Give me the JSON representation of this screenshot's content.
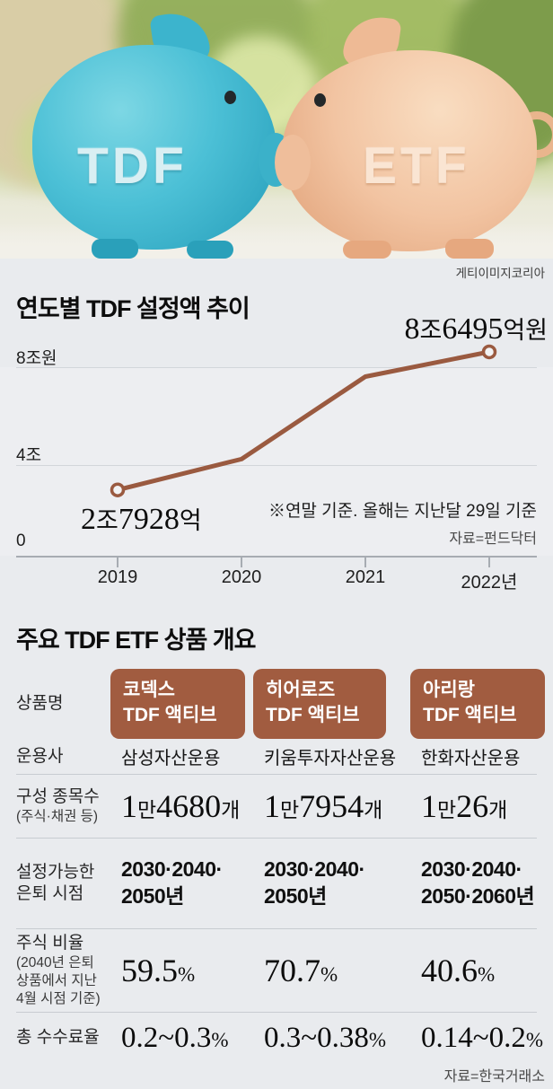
{
  "photo": {
    "left_pig_text": "TDF",
    "right_pig_text": "ETF",
    "credit": "게티이미지코리아",
    "colors": {
      "left_pig": "#4cc0d6",
      "right_pig": "#f2c4a2"
    }
  },
  "chart": {
    "title": "연도별 TDF 설정액 추이",
    "peak_label": "8조6495억원",
    "first_label": "2조7928억",
    "ylabels": [
      "8조원",
      "4조",
      "0"
    ],
    "xlabels": [
      "2019",
      "2020",
      "2021",
      "2022년"
    ],
    "note": "※연말 기준. 올해는 지난달 29일 기준",
    "source": "자료=펀드닥터"
  },
  "chart_data": {
    "type": "line",
    "title": "연도별 TDF 설정액 추이",
    "x": [
      "2019",
      "2020",
      "2021",
      "2022"
    ],
    "unit": "조원",
    "values": [
      2.7928,
      4.1,
      7.6,
      8.6495
    ],
    "value_labels": {
      "2019": "2조7928억",
      "2022": "8조6495억원"
    },
    "estimated_points": [
      "2020",
      "2021"
    ],
    "ylim": [
      0,
      8.8
    ],
    "yticks": [
      0,
      4,
      8
    ],
    "ytick_labels": [
      "0",
      "4조",
      "8조원"
    ],
    "grid": true,
    "note": "※연말 기준. 올해는 지난달 29일 기준",
    "source": "자료=펀드닥터",
    "line_color": "#9a5a40"
  },
  "table": {
    "title": "주요 TDF ETF 상품 개요",
    "header_label": "상품명",
    "products": [
      {
        "line1": "코덱스",
        "line2": "TDF 액티브"
      },
      {
        "line1": "히어로즈",
        "line2": "TDF 액티브"
      },
      {
        "line1": "아리랑",
        "line2": "TDF 액티브"
      }
    ],
    "rows": [
      {
        "label": "운용사",
        "values": [
          "삼성자산운용",
          "키움투자자산운용",
          "한화자산운용"
        ]
      },
      {
        "label": "구성 종목수",
        "sublabel": "(주식·채권 등)",
        "values": [
          "1만4680개",
          "1만7954개",
          "1만26개"
        ]
      },
      {
        "label": "설정가능한\n은퇴 시점",
        "values": [
          "2030·2040·\n2050년",
          "2030·2040·\n2050년",
          "2030·2040·\n2050·2060년"
        ]
      },
      {
        "label": "주식 비율",
        "sublabel": "(2040년 은퇴\n상품에서 지난\n4월 시점 기준)",
        "values": [
          "59.5%",
          "70.7%",
          "40.6%"
        ]
      },
      {
        "label": "총 수수료율",
        "values": [
          "0.2~0.3%",
          "0.3~0.38%",
          "0.14~0.2%"
        ]
      }
    ],
    "source": "자료=한국거래소"
  },
  "colors": {
    "background": "#e9ebee",
    "accent_line": "#9a5a40",
    "badge": "#a15c40",
    "grid": "#d2d6da",
    "axis": "#a7acb2"
  }
}
